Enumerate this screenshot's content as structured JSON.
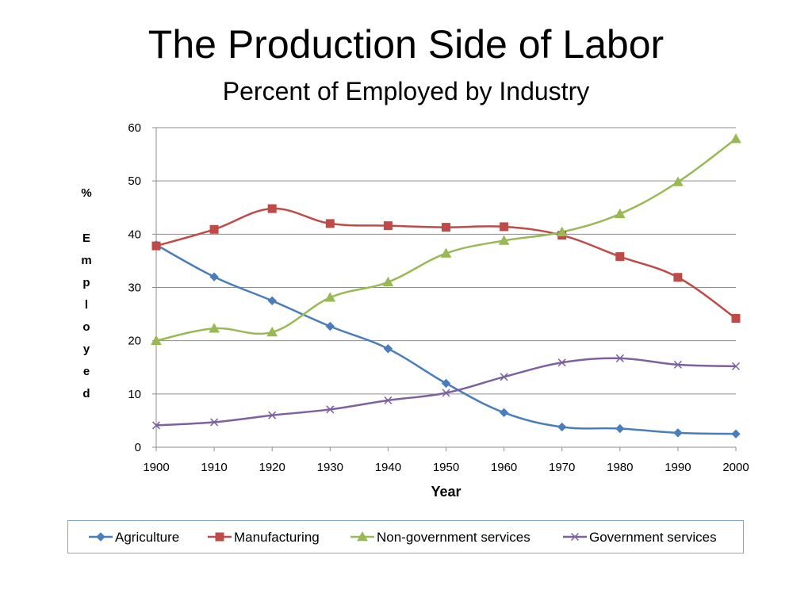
{
  "slide": {
    "title": "The Production Side of Labor",
    "subtitle": "Percent of Employed by Industry"
  },
  "chart_data": {
    "type": "line",
    "x": [
      1900,
      1910,
      1920,
      1930,
      1940,
      1950,
      1960,
      1970,
      1980,
      1990,
      2000
    ],
    "xlabel": "Year",
    "ylabel": "% Employed",
    "ylim": [
      0,
      60
    ],
    "yticks": [
      0,
      10,
      20,
      30,
      40,
      50,
      60
    ],
    "grid": true,
    "legend_position": "bottom",
    "series": [
      {
        "name": "Agriculture",
        "color": "#4a7ebb",
        "marker": "diamond",
        "values": [
          38,
          32,
          27.5,
          22.7,
          18.5,
          12,
          6.5,
          3.8,
          3.5,
          2.7,
          2.5
        ]
      },
      {
        "name": "Manufacturing",
        "color": "#be4b48",
        "marker": "square",
        "values": [
          37.8,
          40.9,
          44.8,
          42,
          41.6,
          41.3,
          41.4,
          39.8,
          35.8,
          31.9,
          24.2
        ]
      },
      {
        "name": "Non-government services",
        "color": "#98b954",
        "marker": "triangle",
        "values": [
          20,
          22.3,
          21.6,
          28.1,
          31,
          36.4,
          38.8,
          40.4,
          43.8,
          49.8,
          57.9
        ]
      },
      {
        "name": "Government services",
        "color": "#7d60a0",
        "marker": "x",
        "values": [
          4.1,
          4.7,
          6,
          7.1,
          8.8,
          10.2,
          13.2,
          15.9,
          16.7,
          15.5,
          15.2
        ]
      }
    ]
  }
}
